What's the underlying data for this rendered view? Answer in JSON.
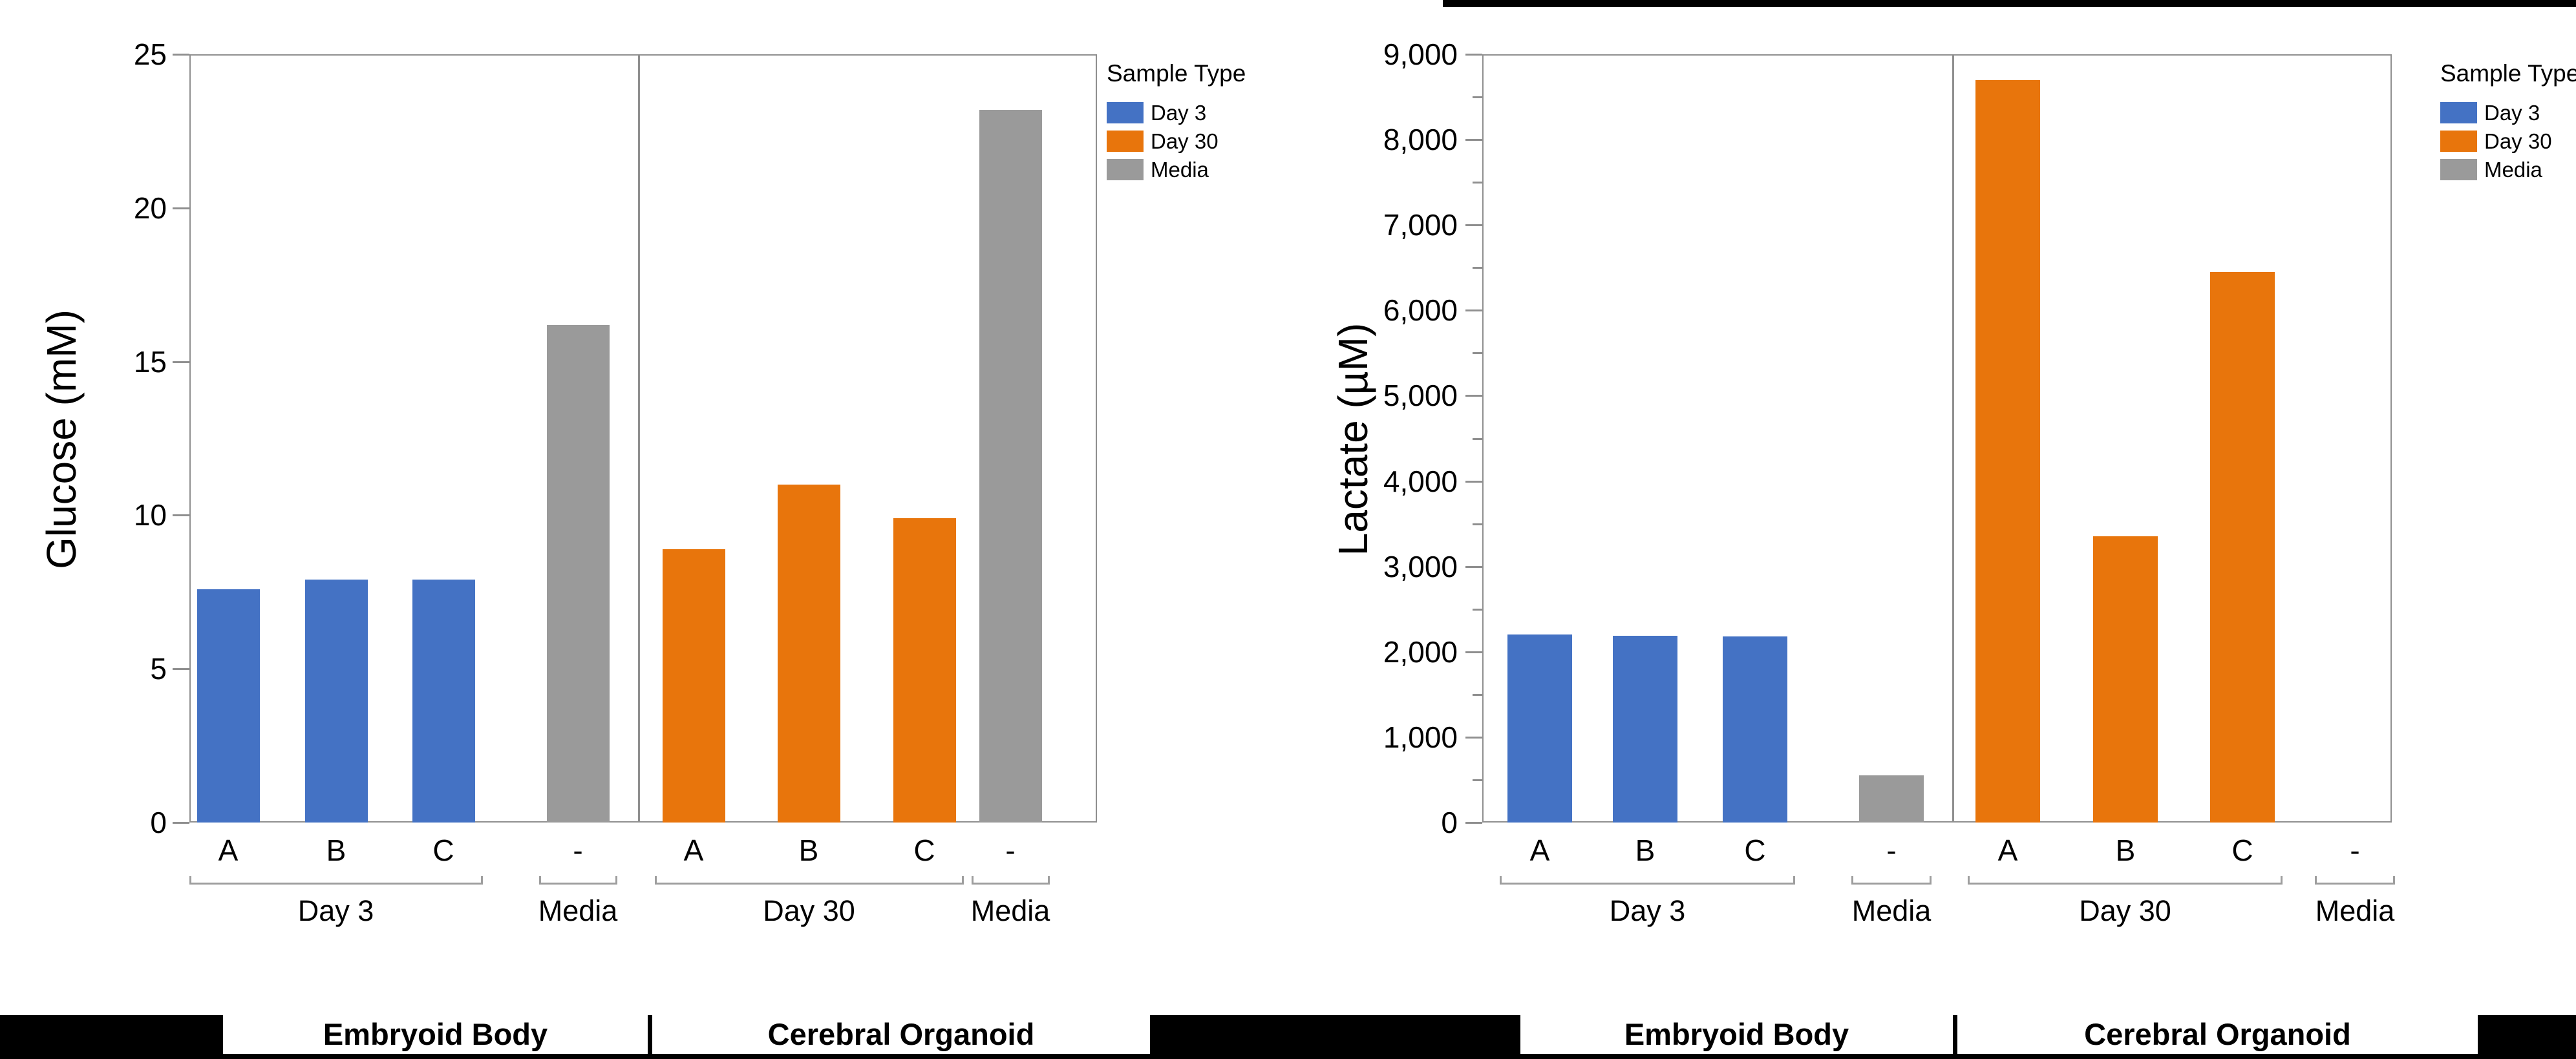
{
  "figure": {
    "background": "#ffffff",
    "band_color": "#000000",
    "frame_color": "#8f8f8f"
  },
  "legend": {
    "title": "Sample Type",
    "entries": [
      {
        "label": "Day 3",
        "color": "#4472C4"
      },
      {
        "label": "Day 30",
        "color": "#E8750C"
      },
      {
        "label": "Media",
        "color": "#9A9A9A"
      }
    ]
  },
  "series_colors": {
    "Day 3": "#4472C4",
    "Day 30": "#E8750C",
    "Media": "#9A9A9A"
  },
  "chart_data": [
    {
      "type": "bar",
      "title": "",
      "ylabel": "Glucose (mM)",
      "ylim": [
        0,
        25
      ],
      "ytick_step": 5,
      "ytick_labels": [
        "0",
        "5",
        "10",
        "15",
        "20",
        "25"
      ],
      "minor_tick_step": null,
      "legend_title": "Sample Type",
      "legend_position": "right-top",
      "grid": false,
      "panels": [
        {
          "label": "Embryoid Body",
          "groups": [
            {
              "label": "Day 3",
              "bars": [
                {
                  "x": "A",
                  "series": "Day 3",
                  "value": 7.6
                },
                {
                  "x": "B",
                  "series": "Day 3",
                  "value": 7.9
                },
                {
                  "x": "C",
                  "series": "Day 3",
                  "value": 7.9
                }
              ]
            },
            {
              "label": "Media",
              "bars": [
                {
                  "x": "-",
                  "series": "Media",
                  "value": 16.2
                }
              ]
            }
          ]
        },
        {
          "label": "Cerebral Organoid",
          "groups": [
            {
              "label": "Day 30",
              "bars": [
                {
                  "x": "A",
                  "series": "Day 30",
                  "value": 8.9
                },
                {
                  "x": "B",
                  "series": "Day 30",
                  "value": 11.0
                },
                {
                  "x": "C",
                  "series": "Day 30",
                  "value": 9.9
                }
              ]
            },
            {
              "label": "Media",
              "bars": [
                {
                  "x": "-",
                  "series": "Media",
                  "value": 23.2
                }
              ]
            }
          ]
        }
      ]
    },
    {
      "type": "bar",
      "title": "",
      "ylabel": "Lactate (µM)",
      "ylim": [
        0,
        9000
      ],
      "ytick_step": 1000,
      "ytick_labels": [
        "0",
        "1,000",
        "2,000",
        "3,000",
        "4,000",
        "5,000",
        "6,000",
        "7,000",
        "8,000",
        "9,000"
      ],
      "minor_tick_step": 500,
      "legend_title": "Sample Type",
      "legend_position": "right-top",
      "grid": false,
      "panels": [
        {
          "label": "Embryoid Body",
          "groups": [
            {
              "label": "Day 3",
              "bars": [
                {
                  "x": "A",
                  "series": "Day 3",
                  "value": 2200
                },
                {
                  "x": "B",
                  "series": "Day 3",
                  "value": 2190
                },
                {
                  "x": "C",
                  "series": "Day 3",
                  "value": 2180
                }
              ]
            },
            {
              "label": "Media",
              "bars": [
                {
                  "x": "-",
                  "series": "Media",
                  "value": 550
                }
              ]
            }
          ]
        },
        {
          "label": "Cerebral Organoid",
          "groups": [
            {
              "label": "Day 30",
              "bars": [
                {
                  "x": "A",
                  "series": "Day 30",
                  "value": 8700
                },
                {
                  "x": "B",
                  "series": "Day 30",
                  "value": 3350
                },
                {
                  "x": "C",
                  "series": "Day 30",
                  "value": 6450
                }
              ]
            },
            {
              "label": "Media",
              "bars": [
                {
                  "x": "-",
                  "series": "Media",
                  "value": 0
                }
              ]
            }
          ]
        }
      ]
    }
  ]
}
